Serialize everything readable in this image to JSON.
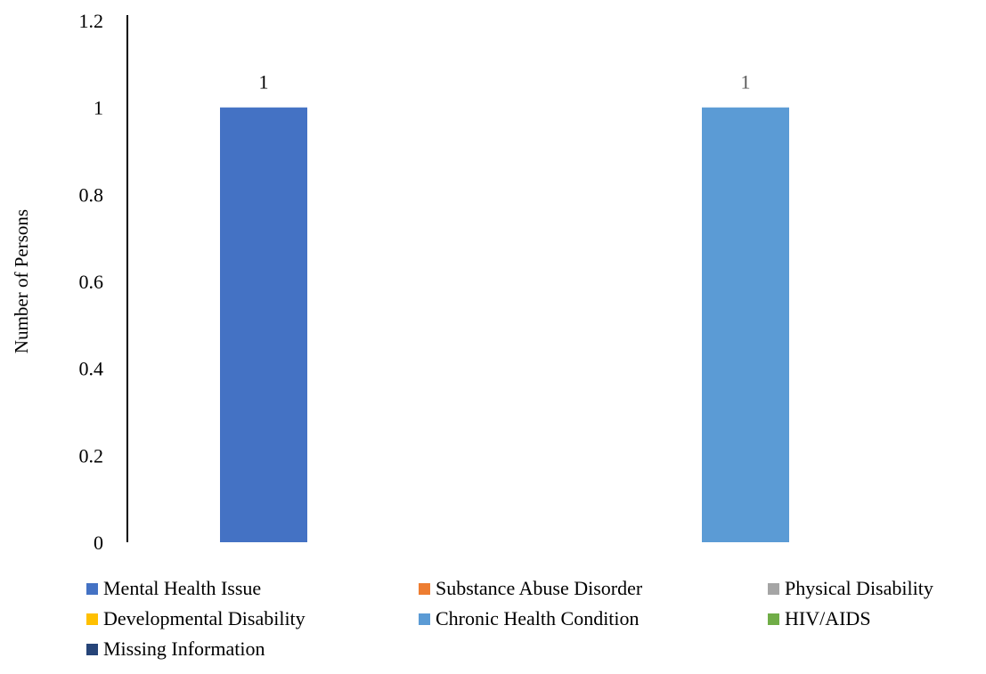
{
  "chart_data": {
    "type": "bar",
    "ylabel": "Number of Persons",
    "ylim": [
      0,
      1.2
    ],
    "yticks": [
      "0",
      "0.2",
      "0.4",
      "0.6",
      "0.8",
      "1",
      "1.2"
    ],
    "grid": false,
    "legend_position": "bottom",
    "series": [
      {
        "name": "Mental Health Issue",
        "value": 1,
        "label": "1",
        "color": "#4472C4"
      },
      {
        "name": "Substance Abuse Disorder",
        "value": 0,
        "label": "",
        "color": "#ED7D31"
      },
      {
        "name": "Physical Disability",
        "value": 0,
        "label": "",
        "color": "#A5A5A5"
      },
      {
        "name": "Developmental Disability",
        "value": 0,
        "label": "",
        "color": "#FFC000"
      },
      {
        "name": "Chronic Health Condition",
        "value": 1,
        "label": "1",
        "color": "#5B9BD5"
      },
      {
        "name": "HIV/AIDS",
        "value": 0,
        "label": "",
        "color": "#70AD47"
      },
      {
        "name": "Missing Information",
        "value": 0,
        "label": "",
        "color": "#264478"
      }
    ],
    "data_label_colors": {
      "Mental Health Issue": "#000000",
      "Chronic Health Condition": "#595959"
    }
  }
}
